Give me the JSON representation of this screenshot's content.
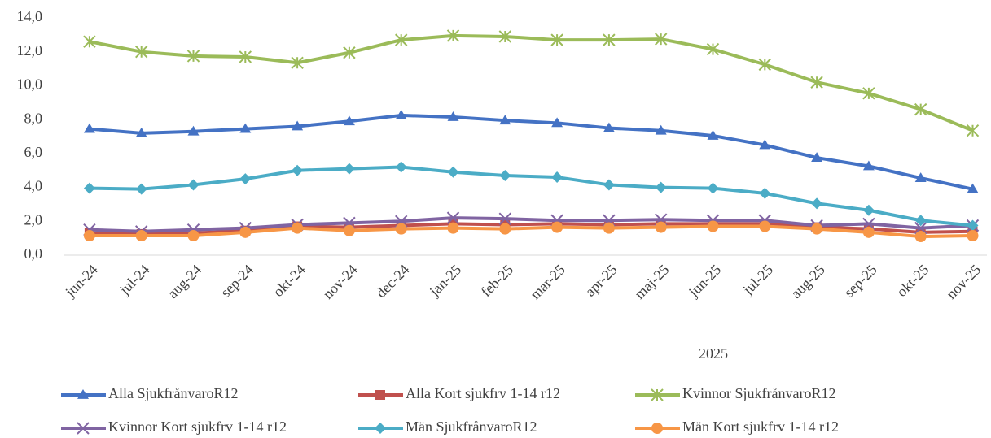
{
  "chart_data": {
    "type": "line",
    "categories": [
      "jun-24",
      "jul-24",
      "aug-24",
      "sep-24",
      "okt-24",
      "nov-24",
      "dec-24",
      "jan-25",
      "feb-25",
      "mar-25",
      "apr-25",
      "maj-25",
      "jun-25",
      "jul-25",
      "aug-25",
      "sep-25",
      "okt-25",
      "nov-25"
    ],
    "x_label": "2025",
    "ylim": [
      0,
      14
    ],
    "yticks": [
      {
        "value": 0,
        "label": "0,0"
      },
      {
        "value": 2,
        "label": "2,0"
      },
      {
        "value": 4,
        "label": "4,0"
      },
      {
        "value": 6,
        "label": "6,0"
      },
      {
        "value": 8,
        "label": "8,0"
      },
      {
        "value": 10,
        "label": "10,0"
      },
      {
        "value": 12,
        "label": "12,0"
      },
      {
        "value": 14,
        "label": "14,0"
      }
    ],
    "grid": false,
    "legend": "bottom",
    "series": [
      {
        "name": "Alla SjukfrånvaroR12",
        "color": "#4472c4",
        "marker": "triangle",
        "values": [
          7.45,
          7.2,
          7.3,
          7.45,
          7.6,
          7.9,
          8.25,
          8.15,
          7.95,
          7.8,
          7.5,
          7.35,
          7.05,
          6.5,
          5.75,
          5.25,
          4.55,
          3.9
        ]
      },
      {
        "name": "Alla Kort sjukfrv 1-14 r12",
        "color": "#c0504d",
        "marker": "square",
        "values": [
          1.3,
          1.25,
          1.3,
          1.45,
          1.7,
          1.65,
          1.75,
          1.85,
          1.8,
          1.85,
          1.8,
          1.85,
          1.85,
          1.85,
          1.65,
          1.55,
          1.35,
          1.4
        ]
      },
      {
        "name": "Kvinnor SjukfrånvaroR12",
        "color": "#9bbb59",
        "marker": "star",
        "values": [
          12.6,
          12.0,
          11.75,
          11.7,
          11.35,
          11.95,
          12.7,
          12.95,
          12.9,
          12.7,
          12.7,
          12.75,
          12.15,
          11.25,
          10.2,
          9.55,
          8.6,
          7.35
        ]
      },
      {
        "name": "Kvinnor Kort sjukfrv 1-14 r12",
        "color": "#8064a2",
        "marker": "x",
        "values": [
          1.5,
          1.4,
          1.5,
          1.6,
          1.8,
          1.9,
          2.0,
          2.2,
          2.15,
          2.05,
          2.05,
          2.1,
          2.05,
          2.05,
          1.75,
          1.85,
          1.6,
          1.75
        ]
      },
      {
        "name": "Män SjukfrånvaroR12",
        "color": "#4bacc6",
        "marker": "diamond",
        "values": [
          3.95,
          3.9,
          4.15,
          4.5,
          5.0,
          5.1,
          5.2,
          4.9,
          4.7,
          4.6,
          4.15,
          4.0,
          3.95,
          3.65,
          3.05,
          2.65,
          2.05,
          1.75
        ]
      },
      {
        "name": "Män Kort sjukfrv 1-14 r12",
        "color": "#f79646",
        "marker": "circle",
        "values": [
          1.15,
          1.15,
          1.15,
          1.35,
          1.6,
          1.45,
          1.55,
          1.6,
          1.55,
          1.65,
          1.6,
          1.65,
          1.7,
          1.7,
          1.55,
          1.35,
          1.1,
          1.15
        ]
      }
    ]
  }
}
